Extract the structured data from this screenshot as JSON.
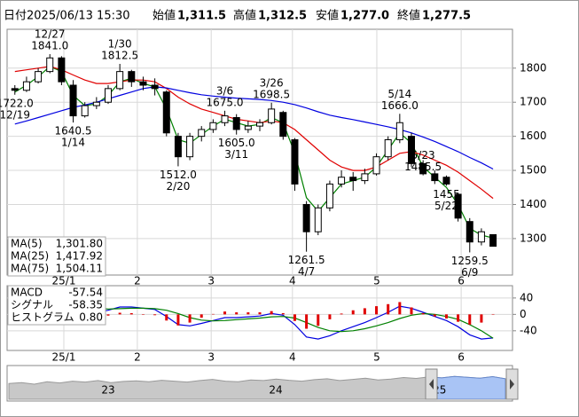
{
  "header": {
    "date_label": "日付",
    "date": "2025/06/13 15:30",
    "items": [
      {
        "label": "始値",
        "value": "1,311.5",
        "color": "#000000"
      },
      {
        "label": "高値",
        "value": "1,312.5",
        "color": "#e00000"
      },
      {
        "label": "安値",
        "value": "1,277.0",
        "color": "#008000"
      },
      {
        "label": "終値",
        "value": "1,277.5",
        "color": "#000000"
      }
    ]
  },
  "chart_data": [
    {
      "type": "candlestick",
      "x": [
        2,
        5,
        8,
        11,
        14,
        17,
        20,
        23,
        26,
        29,
        32,
        35,
        38,
        41,
        44,
        47,
        50,
        53,
        56,
        59,
        62,
        65,
        68,
        71,
        74,
        77,
        80,
        83,
        86,
        89,
        92,
        95,
        98,
        101,
        104,
        107,
        110,
        113,
        116,
        119,
        122,
        125
      ],
      "open": [
        1740,
        1735,
        1760,
        1790,
        1830,
        1750,
        1660,
        1690,
        1700,
        1740,
        1790,
        1760,
        1750,
        1730,
        1600,
        1540,
        1600,
        1620,
        1640,
        1655,
        1620,
        1630,
        1640,
        1670,
        1590,
        1400,
        1320,
        1390,
        1460,
        1480,
        1470,
        1490,
        1540,
        1590,
        1600,
        1520,
        1490,
        1480,
        1430,
        1350,
        1290,
        1311.5
      ],
      "high": [
        1750,
        1775,
        1800,
        1841,
        1835,
        1765,
        1700,
        1715,
        1750,
        1812.5,
        1795,
        1775,
        1770,
        1735,
        1610,
        1610,
        1630,
        1650,
        1675,
        1665,
        1645,
        1650,
        1698.5,
        1675,
        1595,
        1410,
        1400,
        1470,
        1500,
        1495,
        1505,
        1550,
        1600,
        1666,
        1610,
        1530,
        1500,
        1485,
        1435,
        1360,
        1330,
        1312.5
      ],
      "low": [
        1722,
        1730,
        1755,
        1785,
        1750,
        1640.5,
        1655,
        1680,
        1695,
        1735,
        1745,
        1735,
        1720,
        1600,
        1512,
        1530,
        1585,
        1610,
        1630,
        1605,
        1610,
        1615,
        1635,
        1590,
        1440,
        1261.5,
        1310,
        1380,
        1450,
        1440,
        1460,
        1485,
        1530,
        1580,
        1510,
        1485.5,
        1460,
        1455,
        1350,
        1259.5,
        1280,
        1277
      ],
      "close": [
        1735,
        1760,
        1790,
        1830,
        1760,
        1660,
        1690,
        1700,
        1740,
        1790,
        1760,
        1750,
        1740,
        1610,
        1540,
        1600,
        1620,
        1640,
        1660,
        1620,
        1630,
        1640,
        1680,
        1600,
        1460,
        1320,
        1390,
        1460,
        1480,
        1470,
        1490,
        1540,
        1590,
        1640,
        1520,
        1490,
        1470,
        1460,
        1360,
        1290,
        1320,
        1277.5
      ],
      "up_color": "#ffffff",
      "down_color": "#000000",
      "lines": [
        {
          "name": "MA(5)",
          "color": "#008000",
          "legend_value": "1,301.80",
          "values": [
            1730,
            1750,
            1775,
            1805,
            1790,
            1720,
            1690,
            1695,
            1720,
            1760,
            1770,
            1755,
            1745,
            1680,
            1590,
            1580,
            1605,
            1630,
            1650,
            1640,
            1630,
            1635,
            1655,
            1640,
            1550,
            1420,
            1380,
            1420,
            1460,
            1470,
            1480,
            1510,
            1560,
            1610,
            1580,
            1510,
            1480,
            1450,
            1400,
            1330,
            1310,
            1301.8
          ]
        },
        {
          "name": "MA(25)",
          "color": "#e00000",
          "legend_value": "1,417.92",
          "values": [
            1790,
            1795,
            1800,
            1805,
            1795,
            1780,
            1765,
            1755,
            1755,
            1760,
            1765,
            1765,
            1760,
            1740,
            1715,
            1695,
            1680,
            1670,
            1660,
            1650,
            1645,
            1640,
            1645,
            1640,
            1620,
            1590,
            1560,
            1530,
            1510,
            1500,
            1500,
            1510,
            1530,
            1550,
            1555,
            1545,
            1530,
            1515,
            1495,
            1470,
            1445,
            1417.92
          ]
        },
        {
          "name": "MA(75)",
          "color": "#0000e0",
          "legend_value": "1,504.11",
          "values": [
            1636,
            1645,
            1655,
            1665,
            1675,
            1685,
            1692,
            1700,
            1710,
            1720,
            1730,
            1740,
            1745,
            1742,
            1735,
            1728,
            1722,
            1718,
            1715,
            1712,
            1710,
            1708,
            1705,
            1700,
            1693,
            1683,
            1672,
            1662,
            1655,
            1649,
            1642,
            1635,
            1628,
            1620,
            1610,
            1598,
            1585,
            1570,
            1555,
            1538,
            1522,
            1504.11
          ]
        }
      ],
      "annotations": [
        {
          "x": 2,
          "value": 1722,
          "label": "1722.0",
          "date": "12/19",
          "position": "below"
        },
        {
          "x": 11,
          "value": 1841,
          "label": "1841.0",
          "date": "12/27",
          "position": "above"
        },
        {
          "x": 17,
          "value": 1640.5,
          "label": "1640.5",
          "date": "1/14",
          "position": "below"
        },
        {
          "x": 29,
          "value": 1812.5,
          "label": "1812.5",
          "date": "1/30",
          "position": "above"
        },
        {
          "x": 44,
          "value": 1512,
          "label": "1512.0",
          "date": "2/20",
          "position": "below"
        },
        {
          "x": 56,
          "value": 1675,
          "label": "1675.0",
          "date": "3/6",
          "position": "above"
        },
        {
          "x": 59,
          "value": 1605,
          "label": "1605.0",
          "date": "3/11",
          "position": "below"
        },
        {
          "x": 68,
          "value": 1698.5,
          "label": "1698.5",
          "date": "3/26",
          "position": "above"
        },
        {
          "x": 77,
          "value": 1261.5,
          "label": "1261.5",
          "date": "4/7",
          "position": "below"
        },
        {
          "x": 101,
          "value": 1666,
          "label": "1666.0",
          "date": "5/14",
          "position": "above"
        },
        {
          "x": 107,
          "value": 1485.5,
          "label": "1485.5",
          "date": "5/23",
          "position": "above"
        },
        {
          "x": 113,
          "value": 1455,
          "label": "1455",
          "date": "5/22",
          "position": "below"
        },
        {
          "x": 119,
          "value": 1259.5,
          "label": "1259.5",
          "date": "6/9",
          "position": "below"
        }
      ],
      "xlim": [
        0,
        130
      ],
      "ylim": [
        1193,
        1914
      ],
      "yticks": [
        1300,
        1400,
        1500,
        1600,
        1700,
        1800
      ],
      "xticks": [
        {
          "value": 14.6,
          "label": "25/1"
        },
        {
          "value": 33.5,
          "label": "2"
        },
        {
          "value": 52.5,
          "label": "3"
        },
        {
          "value": 73.4,
          "label": "4"
        },
        {
          "value": 95.1,
          "label": "5"
        },
        {
          "value": 116.8,
          "label": "6"
        }
      ],
      "grid": true,
      "legend": "bottom-left"
    },
    {
      "type": "macd",
      "x": [
        2,
        5,
        8,
        11,
        14,
        17,
        20,
        23,
        26,
        29,
        32,
        35,
        38,
        41,
        44,
        47,
        50,
        53,
        56,
        59,
        62,
        65,
        68,
        71,
        74,
        77,
        80,
        83,
        86,
        89,
        92,
        95,
        98,
        101,
        104,
        107,
        110,
        113,
        116,
        119,
        122,
        125
      ],
      "series": [
        {
          "name": "MACD",
          "color": "#0000e0",
          "kind": "line",
          "legend_value": "-57.54",
          "values": [
            20,
            30,
            35,
            40,
            32,
            12,
            5,
            5,
            10,
            18,
            18,
            15,
            12,
            -5,
            -25,
            -28,
            -22,
            -15,
            -8,
            -8,
            -6,
            -4,
            2,
            -2,
            -25,
            -55,
            -60,
            -52,
            -40,
            -30,
            -20,
            -8,
            5,
            20,
            15,
            5,
            -5,
            -15,
            -30,
            -50,
            -60,
            -57.54
          ]
        },
        {
          "name": "シグナル",
          "color": "#008000",
          "kind": "line",
          "legend_value": "-58.35",
          "values": [
            15,
            20,
            25,
            30,
            32,
            28,
            22,
            16,
            13,
            14,
            15,
            15,
            14,
            10,
            2,
            -8,
            -14,
            -16,
            -15,
            -13,
            -11,
            -9,
            -6,
            -5,
            -9,
            -20,
            -32,
            -40,
            -42,
            -40,
            -35,
            -28,
            -20,
            -10,
            -2,
            2,
            0,
            -5,
            -12,
            -25,
            -40,
            -58.35
          ]
        },
        {
          "name": "ヒストグラム",
          "color": "#e00000",
          "kind": "bar",
          "legend_value": "0.80",
          "values": [
            5,
            10,
            10,
            10,
            0,
            -16,
            -17,
            -11,
            -3,
            4,
            3,
            0,
            -2,
            -15,
            -27,
            -20,
            -8,
            1,
            7,
            5,
            5,
            5,
            8,
            3,
            -16,
            -35,
            -28,
            -12,
            2,
            10,
            15,
            20,
            25,
            30,
            17,
            3,
            -5,
            -10,
            -18,
            -25,
            -20,
            0.8
          ]
        }
      ],
      "xlim": [
        0,
        130
      ],
      "ylim": [
        -88,
        70
      ],
      "yticks": [
        40,
        0,
        -40
      ],
      "xticks": [
        {
          "value": 14.6,
          "label": "25/1"
        },
        {
          "value": 33.5,
          "label": "2"
        },
        {
          "value": 52.5,
          "label": "3"
        },
        {
          "value": 73.4,
          "label": "4"
        },
        {
          "value": 95.1,
          "label": "5"
        },
        {
          "value": 116.8,
          "label": "6"
        }
      ],
      "grid": true,
      "legend": "top-left"
    },
    {
      "type": "area",
      "color": "#c8c8c8",
      "selection_color": "#a9c4f5",
      "values": [
        52,
        55,
        50,
        58,
        54,
        60,
        57,
        62,
        55,
        59,
        61,
        58,
        63,
        60,
        57,
        62,
        66,
        60,
        58,
        64,
        62,
        67,
        63,
        60,
        65,
        68,
        62,
        66,
        70,
        64,
        67,
        72,
        69,
        74,
        71,
        76,
        73,
        70,
        75,
        68
      ],
      "xlim": [
        0,
        40
      ],
      "ylim": [
        0,
        100
      ],
      "selection": [
        34.3,
        40
      ],
      "xticks": [
        {
          "value": 8,
          "label": "23"
        },
        {
          "value": 21.5,
          "label": "24"
        },
        {
          "value": 34.7,
          "label": "25"
        }
      ]
    }
  ]
}
